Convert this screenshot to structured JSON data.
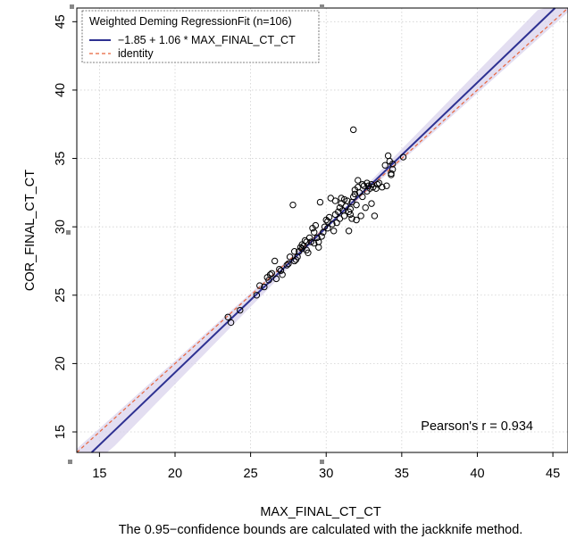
{
  "chart_data": {
    "type": "scatter",
    "title": "",
    "xlabel": "MAX_FINAL_CT_CT",
    "ylabel": "COR_FINAL_CT_CT",
    "caption": "The 0.95−confidence bounds are calculated with the jackknife method.",
    "xlim": [
      13.5,
      46
    ],
    "ylim": [
      13.5,
      46
    ],
    "xticks": [
      15,
      20,
      25,
      30,
      35,
      40,
      45
    ],
    "yticks": [
      15,
      20,
      25,
      30,
      35,
      40,
      45
    ],
    "grid": true,
    "legend": {
      "title": "Weighted Deming RegressionFit (n=106)",
      "placement": "top-left",
      "entries": [
        {
          "label": "−1.85 + 1.06 * MAX_FINAL_CT_CT",
          "color": "#2e3192",
          "style": "solid"
        },
        {
          "label": "identity",
          "color": "#e8643c",
          "style": "dashed"
        }
      ]
    },
    "annotation": "Pearson's r = 0.934",
    "fit": {
      "intercept": -1.85,
      "slope": 1.06
    },
    "identity": {
      "intercept": 0,
      "slope": 1
    },
    "colors": {
      "fit": "#2e3192",
      "identity": "#e8643c",
      "band": "#d9d3ec",
      "points": "#000000",
      "grid": "#d0d0d0"
    },
    "points": [
      [
        23.5,
        23.4
      ],
      [
        23.7,
        23.0
      ],
      [
        24.3,
        23.9
      ],
      [
        25.4,
        25.0
      ],
      [
        25.6,
        25.7
      ],
      [
        25.9,
        25.6
      ],
      [
        26.1,
        26.3
      ],
      [
        26.2,
        26.1
      ],
      [
        26.3,
        26.5
      ],
      [
        26.4,
        26.6
      ],
      [
        26.6,
        27.5
      ],
      [
        26.7,
        26.2
      ],
      [
        27.0,
        26.8
      ],
      [
        27.1,
        26.5
      ],
      [
        27.4,
        27.2
      ],
      [
        27.6,
        27.8
      ],
      [
        27.8,
        31.6
      ],
      [
        27.9,
        28.2
      ],
      [
        27.9,
        27.5
      ],
      [
        28.0,
        27.6
      ],
      [
        28.1,
        27.8
      ],
      [
        28.2,
        28.2
      ],
      [
        28.3,
        28.5
      ],
      [
        28.4,
        28.4
      ],
      [
        28.4,
        28.7
      ],
      [
        28.5,
        28.6
      ],
      [
        28.6,
        29.0
      ],
      [
        28.7,
        28.3
      ],
      [
        28.8,
        28.1
      ],
      [
        28.9,
        29.2
      ],
      [
        29.0,
        28.9
      ],
      [
        29.1,
        29.9
      ],
      [
        29.2,
        28.8
      ],
      [
        29.3,
        30.1
      ],
      [
        29.4,
        29.2
      ],
      [
        29.5,
        28.9
      ],
      [
        29.5,
        28.5
      ],
      [
        29.6,
        31.8
      ],
      [
        29.7,
        29.3
      ],
      [
        29.8,
        29.6
      ],
      [
        29.9,
        30.0
      ],
      [
        30.0,
        30.5
      ],
      [
        30.1,
        29.9
      ],
      [
        30.2,
        30.7
      ],
      [
        30.3,
        32.1
      ],
      [
        30.4,
        30.2
      ],
      [
        30.5,
        29.7
      ],
      [
        30.6,
        30.9
      ],
      [
        30.7,
        30.3
      ],
      [
        30.8,
        31.1
      ],
      [
        30.9,
        31.4
      ],
      [
        30.9,
        30.6
      ],
      [
        31.0,
        31.7
      ],
      [
        31.1,
        31.2
      ],
      [
        31.2,
        30.8
      ],
      [
        31.2,
        32.0
      ],
      [
        31.3,
        31.5
      ],
      [
        31.4,
        31.9
      ],
      [
        31.5,
        31.1
      ],
      [
        31.5,
        29.7
      ],
      [
        31.6,
        30.9
      ],
      [
        31.6,
        31.3
      ],
      [
        31.7,
        30.6
      ],
      [
        31.7,
        31.8
      ],
      [
        31.8,
        37.1
      ],
      [
        31.8,
        32.2
      ],
      [
        31.9,
        32.7
      ],
      [
        32.0,
        30.5
      ],
      [
        32.0,
        31.6
      ],
      [
        32.1,
        33.4
      ],
      [
        32.1,
        32.9
      ],
      [
        32.2,
        32.5
      ],
      [
        32.3,
        30.8
      ],
      [
        32.4,
        32.2
      ],
      [
        32.4,
        33.1
      ],
      [
        32.5,
        33.0
      ],
      [
        32.6,
        31.4
      ],
      [
        32.7,
        32.6
      ],
      [
        32.7,
        33.2
      ],
      [
        32.8,
        33.0
      ],
      [
        32.9,
        32.8
      ],
      [
        33.0,
        31.7
      ],
      [
        33.0,
        33.1
      ],
      [
        33.1,
        32.9
      ],
      [
        33.2,
        30.8
      ],
      [
        33.3,
        32.8
      ],
      [
        33.4,
        33.1
      ],
      [
        33.5,
        33.2
      ],
      [
        33.7,
        32.9
      ],
      [
        33.9,
        34.5
      ],
      [
        34.0,
        33.0
      ],
      [
        34.1,
        35.2
      ],
      [
        34.2,
        34.8
      ],
      [
        34.3,
        33.9
      ],
      [
        34.4,
        34.6
      ],
      [
        34.4,
        34.2
      ],
      [
        34.3,
        33.8
      ],
      [
        35.1,
        35.1
      ],
      [
        30.6,
        31.9
      ],
      [
        31.0,
        32.1
      ],
      [
        29.2,
        29.6
      ],
      [
        27.5,
        27.3
      ],
      [
        26.9,
        26.9
      ],
      [
        28.7,
        28.9
      ],
      [
        31.9,
        32.4
      ],
      [
        30.1,
        30.4
      ]
    ]
  }
}
